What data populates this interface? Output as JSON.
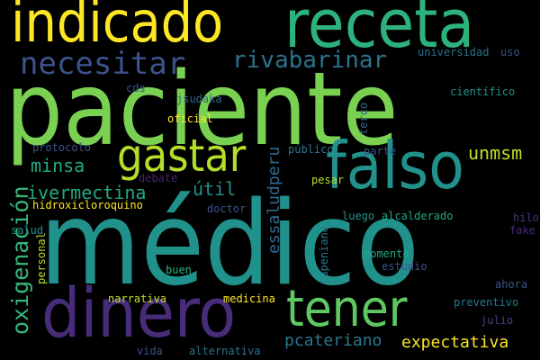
{
  "background": "#000000",
  "words": [
    {
      "text": "paciente",
      "color": "#7ad151"
    },
    {
      "text": "médico",
      "color": "#21918c"
    },
    {
      "text": "indicado",
      "color": "#fde725"
    },
    {
      "text": "receta",
      "color": "#2db27d"
    },
    {
      "text": "falso",
      "color": "#21918c"
    },
    {
      "text": "dinero",
      "color": "#472c7a"
    },
    {
      "text": "tener",
      "color": "#5ec962"
    },
    {
      "text": "gastar",
      "color": "#b5de2b"
    },
    {
      "text": "necesitar",
      "color": "#3b528b"
    },
    {
      "text": "rivabarinar",
      "color": "#2c728e"
    },
    {
      "text": "oxigenación",
      "color": "#35b779"
    },
    {
      "text": "ivermectina",
      "color": "#22a884"
    },
    {
      "text": "minsa",
      "color": "#22a884"
    },
    {
      "text": "útil",
      "color": "#21918c"
    },
    {
      "text": "unmsm",
      "color": "#c2df23"
    },
    {
      "text": "essaludperu",
      "color": "#31688e"
    },
    {
      "text": "pcateriano",
      "color": "#2a788e"
    },
    {
      "text": "expectativa",
      "color": "#fde725"
    },
    {
      "text": "universidad",
      "color": "#2c728e"
    },
    {
      "text": "uso",
      "color": "#3b528b"
    },
    {
      "text": "científico",
      "color": "#21918c"
    },
    {
      "text": "cds",
      "color": "#3b528b"
    },
    {
      "text": "jsudaka",
      "color": "#31688e"
    },
    {
      "text": "oficial",
      "color": "#fde725"
    },
    {
      "text": "terco",
      "color": "#31688e"
    },
    {
      "text": "protocolo",
      "color": "#3b528b"
    },
    {
      "text": "público",
      "color": "#2a788e"
    },
    {
      "text": "parte",
      "color": "#3b528b"
    },
    {
      "text": "debate",
      "color": "#482173"
    },
    {
      "text": "pesar",
      "color": "#b5de2b"
    },
    {
      "text": "hidroxicloroquino",
      "color": "#fde725"
    },
    {
      "text": "doctor",
      "color": "#3b528b"
    },
    {
      "text": "luego",
      "color": "#21918c"
    },
    {
      "text": "alcalderado",
      "color": "#22a884"
    },
    {
      "text": "hilo",
      "color": "#443983"
    },
    {
      "text": "fake",
      "color": "#482878"
    },
    {
      "text": "salud",
      "color": "#21918c"
    },
    {
      "text": "personal",
      "color": "#b5de2b"
    },
    {
      "text": "tapeniano",
      "color": "#2a788e"
    },
    {
      "text": "momento",
      "color": "#22a884"
    },
    {
      "text": "estudio",
      "color": "#3b528b"
    },
    {
      "text": "buen",
      "color": "#2db27d"
    },
    {
      "text": "ahora",
      "color": "#3b528b"
    },
    {
      "text": "narrativa",
      "color": "#c2df23"
    },
    {
      "text": "medicina",
      "color": "#fde725"
    },
    {
      "text": "preventivo",
      "color": "#2a788e"
    },
    {
      "text": "julio",
      "color": "#414487"
    },
    {
      "text": "vida",
      "color": "#3b528b"
    },
    {
      "text": "alternativa",
      "color": "#2c728e"
    }
  ]
}
